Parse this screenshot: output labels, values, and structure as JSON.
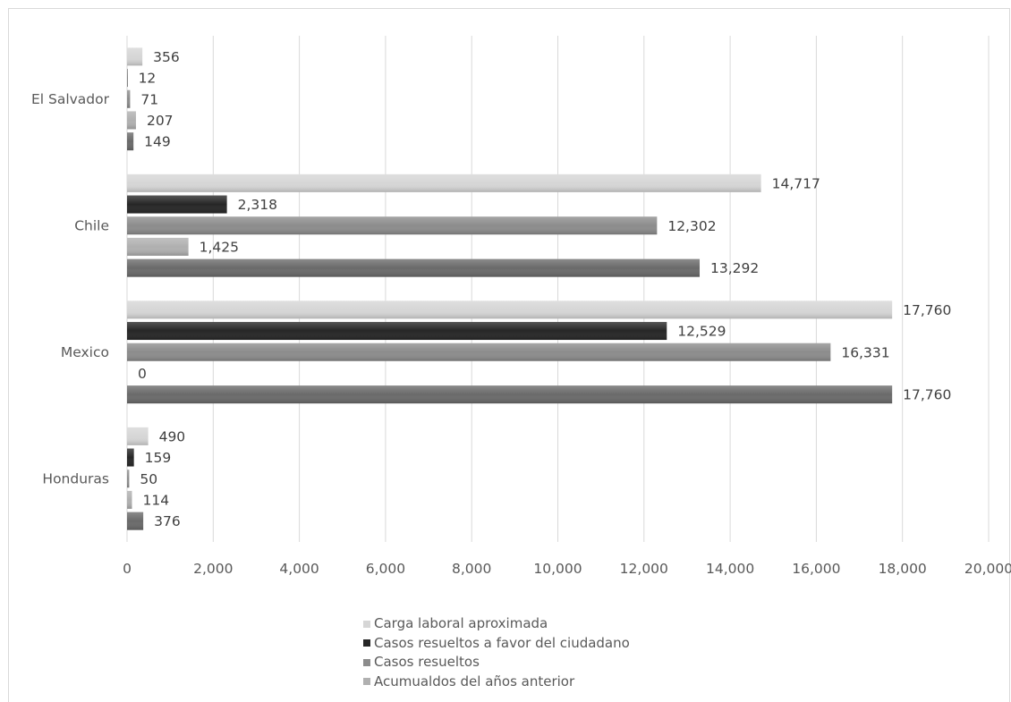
{
  "chart_data": {
    "type": "bar",
    "orientation": "horizontal",
    "categories": [
      "El Salvador",
      "Chile",
      "Mexico",
      "Honduras"
    ],
    "series": [
      {
        "name": "Carga laboral aproximada",
        "color": "#d6d6d6",
        "values": [
          356,
          14717,
          17760,
          490
        ]
      },
      {
        "name": "Casos resueltos a favor del ciudadano",
        "color": "#262626",
        "values": [
          12,
          2318,
          12529,
          159
        ]
      },
      {
        "name": "Casos resueltos",
        "color": "#8c8c8c",
        "values": [
          71,
          12302,
          16331,
          50
        ]
      },
      {
        "name": "Acumualdos del años anterior",
        "color": "#b0b0b0",
        "values": [
          207,
          1425,
          0,
          114
        ]
      },
      {
        "name": "",
        "color": "#6a6a6a",
        "values": [
          149,
          13292,
          17760,
          376
        ]
      }
    ],
    "value_labels": [
      [
        "356",
        "14,717",
        "17,760",
        "490"
      ],
      [
        "12",
        "2,318",
        "12,529",
        "159"
      ],
      [
        "71",
        "12,302",
        "16,331",
        "50"
      ],
      [
        "207",
        "1,425",
        "0",
        "114"
      ],
      [
        "149",
        "13,292",
        "17,760",
        "376"
      ]
    ],
    "xlim": [
      0,
      20000
    ],
    "x_ticks": [
      "0",
      "2,000",
      "4,000",
      "6,000",
      "8,000",
      "10,000",
      "12,000",
      "14,000",
      "16,000",
      "18,000",
      "20,000"
    ],
    "grid": true,
    "legend_position": "bottom"
  }
}
